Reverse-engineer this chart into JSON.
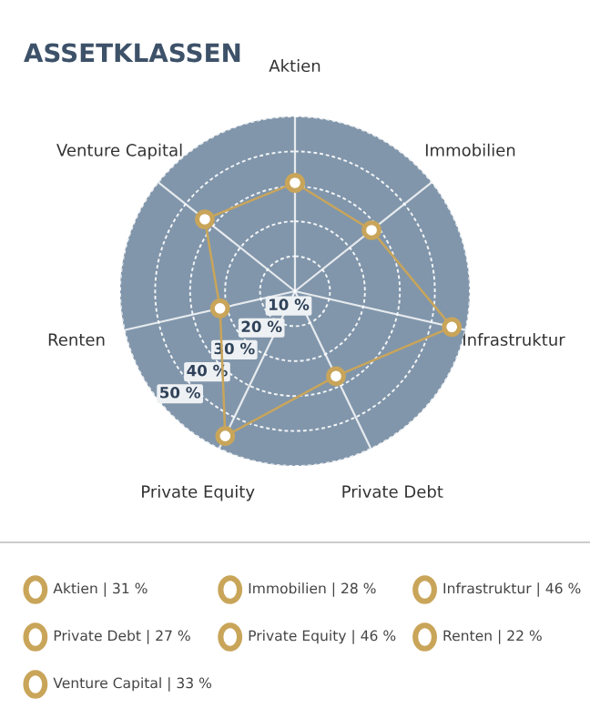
{
  "chart_data": {
    "type": "radar",
    "title": "ASSETKLASSEN",
    "categories": [
      "Aktien",
      "Immobilien",
      "Infrastruktur",
      "Private Debt",
      "Private Equity",
      "Renten",
      "Venture Capital"
    ],
    "series": [
      {
        "color": "#c9a55a",
        "values": [
          31,
          28,
          46,
          27,
          46,
          22,
          33
        ]
      }
    ],
    "ylim": [
      0,
      50
    ],
    "yticks": [
      {
        "value": 10,
        "label": "10 %"
      },
      {
        "value": 20,
        "label": "20 %"
      },
      {
        "value": 30,
        "label": "30 %"
      },
      {
        "value": 40,
        "label": "40 %"
      },
      {
        "value": 50,
        "label": "50 %"
      }
    ],
    "annotations": [
      "Aktien | 31 %",
      "Immobilien | 28 %",
      "Infrastruktur | 46 %",
      "Private Debt | 27 %",
      "Private Equity | 46 %",
      "Renten | 22 %",
      "Venture Capital | 33 %"
    ],
    "marker": "circle",
    "grid": true
  }
}
